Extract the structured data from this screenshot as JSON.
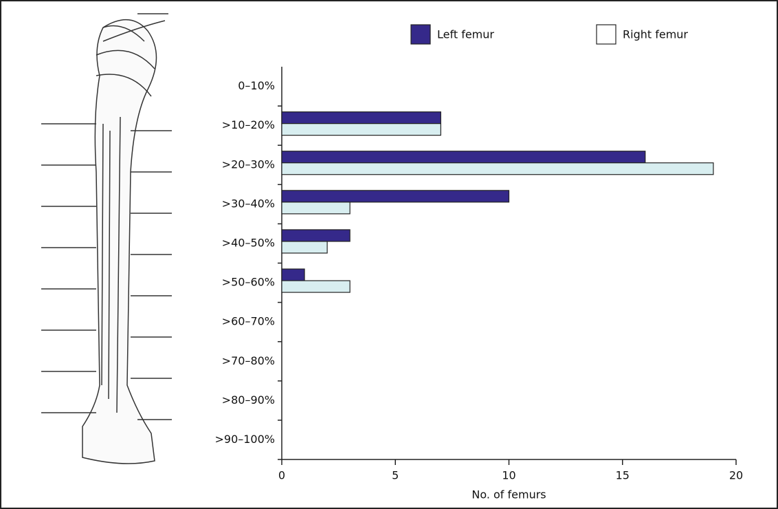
{
  "chart_data": {
    "type": "barh",
    "categories": [
      "0–10%",
      ">10–20%",
      ">20–30%",
      ">30–40%",
      ">40–50%",
      ">50–60%",
      ">60–70%",
      ">70–80%",
      ">80–90%",
      ">90–100%"
    ],
    "series": [
      {
        "name": "Left femur",
        "color": "#35298a",
        "values": [
          0,
          7,
          16,
          10,
          3,
          1,
          0,
          0,
          0,
          0
        ]
      },
      {
        "name": "Right femur",
        "color": "#d8eef0",
        "values": [
          0,
          7,
          19,
          3,
          2,
          3,
          0,
          0,
          0,
          0
        ]
      }
    ],
    "xlim": [
      0,
      20
    ],
    "xticks": [
      0,
      5,
      10,
      15,
      20
    ],
    "xlabel": "No. of femurs"
  }
}
